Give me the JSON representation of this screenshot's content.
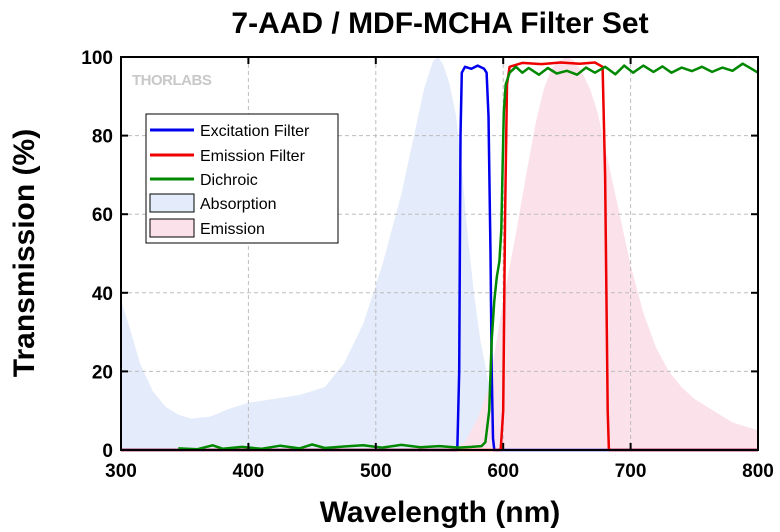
{
  "chart_data": {
    "type": "line",
    "title": "7-AAD / MDF-MCHA Filter Set",
    "xlabel": "Wavelength (nm)",
    "ylabel": "Transmission (%)",
    "xlim": [
      300,
      800
    ],
    "ylim": [
      0,
      100
    ],
    "xticks": [
      300,
      400,
      500,
      600,
      700,
      800
    ],
    "yticks": [
      0,
      20,
      40,
      60,
      80,
      100
    ],
    "grid": true,
    "legend_position": "top-left",
    "logo": "THORLABS",
    "colors": {
      "excitation": "#0000ee",
      "emission_filter": "#ee0000",
      "dichroic": "#008800",
      "absorption_fill": "#e4ebfa",
      "emission_fill": "#fbe1ea",
      "grid": "#bdbdbd"
    },
    "series": [
      {
        "name": "Excitation Filter",
        "kind": "line",
        "color": "#0000ee",
        "points": [
          [
            300,
            0
          ],
          [
            564,
            0
          ],
          [
            565.5,
            20
          ],
          [
            566.5,
            80
          ],
          [
            567.5,
            96
          ],
          [
            570,
            97.5
          ],
          [
            575,
            97
          ],
          [
            580,
            97.8
          ],
          [
            585,
            97
          ],
          [
            587,
            96
          ],
          [
            588.5,
            85
          ],
          [
            590,
            50
          ],
          [
            591,
            20
          ],
          [
            592,
            3
          ],
          [
            593,
            0
          ],
          [
            800,
            0
          ]
        ]
      },
      {
        "name": "Emission Filter",
        "kind": "line",
        "color": "#ee0000",
        "points": [
          [
            300,
            0
          ],
          [
            598,
            0
          ],
          [
            600,
            10
          ],
          [
            601.5,
            60
          ],
          [
            603,
            93
          ],
          [
            605,
            97.5
          ],
          [
            615,
            98.5
          ],
          [
            630,
            98.2
          ],
          [
            645,
            98.6
          ],
          [
            660,
            98.3
          ],
          [
            672,
            98.6
          ],
          [
            678,
            97.5
          ],
          [
            680,
            70
          ],
          [
            681,
            40
          ],
          [
            682,
            10
          ],
          [
            683,
            0
          ],
          [
            800,
            0
          ]
        ]
      },
      {
        "name": "Dichroic",
        "kind": "line",
        "color": "#008800",
        "points": [
          [
            345,
            0.4
          ],
          [
            360,
            0.2
          ],
          [
            372,
            1.2
          ],
          [
            380,
            0.3
          ],
          [
            395,
            0.8
          ],
          [
            410,
            0.3
          ],
          [
            425,
            1.1
          ],
          [
            440,
            0.4
          ],
          [
            450,
            1.4
          ],
          [
            460,
            0.5
          ],
          [
            475,
            0.9
          ],
          [
            490,
            1.2
          ],
          [
            505,
            0.6
          ],
          [
            520,
            1.3
          ],
          [
            535,
            0.7
          ],
          [
            550,
            1.0
          ],
          [
            565,
            0.6
          ],
          [
            575,
            0.8
          ],
          [
            583,
            1.0
          ],
          [
            586,
            2
          ],
          [
            589,
            10
          ],
          [
            591,
            28
          ],
          [
            593,
            38
          ],
          [
            595,
            44
          ],
          [
            597,
            48
          ],
          [
            598.5,
            56
          ],
          [
            599.5,
            72
          ],
          [
            600.5,
            86
          ],
          [
            602,
            93
          ],
          [
            605,
            96
          ],
          [
            610,
            97.5
          ],
          [
            615,
            96
          ],
          [
            620,
            97.2
          ],
          [
            628,
            95.5
          ],
          [
            635,
            97.2
          ],
          [
            642,
            95.8
          ],
          [
            650,
            96.5
          ],
          [
            658,
            95.5
          ],
          [
            665,
            97.3
          ],
          [
            672,
            96
          ],
          [
            680,
            97.5
          ],
          [
            688,
            95.6
          ],
          [
            695,
            97.8
          ],
          [
            702,
            96
          ],
          [
            710,
            97.8
          ],
          [
            718,
            96.2
          ],
          [
            725,
            97.6
          ],
          [
            732,
            96
          ],
          [
            740,
            97.3
          ],
          [
            748,
            96.4
          ],
          [
            756,
            97.5
          ],
          [
            764,
            96.2
          ],
          [
            772,
            97.3
          ],
          [
            780,
            96.5
          ],
          [
            788,
            98.3
          ],
          [
            795,
            97
          ],
          [
            800,
            96
          ]
        ]
      },
      {
        "name": "Absorption",
        "kind": "area",
        "color": "#e4ebfa",
        "points": [
          [
            300,
            38
          ],
          [
            305,
            33
          ],
          [
            315,
            22
          ],
          [
            325,
            15
          ],
          [
            335,
            11
          ],
          [
            345,
            9
          ],
          [
            355,
            8
          ],
          [
            370,
            8.5
          ],
          [
            385,
            10.5
          ],
          [
            400,
            12
          ],
          [
            420,
            13
          ],
          [
            440,
            14
          ],
          [
            460,
            16
          ],
          [
            475,
            22
          ],
          [
            490,
            32
          ],
          [
            505,
            47
          ],
          [
            520,
            65
          ],
          [
            530,
            80
          ],
          [
            538,
            92
          ],
          [
            545,
            99
          ],
          [
            549,
            100
          ],
          [
            553,
            98
          ],
          [
            558,
            93
          ],
          [
            563,
            85
          ],
          [
            568,
            70
          ],
          [
            572,
            55
          ],
          [
            577,
            40
          ],
          [
            582,
            28
          ],
          [
            588,
            18
          ],
          [
            595,
            10
          ],
          [
            600,
            6
          ],
          [
            610,
            2
          ],
          [
            630,
            0.5
          ],
          [
            800,
            0
          ]
        ]
      },
      {
        "name": "Emission",
        "kind": "area",
        "color": "#fbe1ea",
        "points": [
          [
            300,
            0
          ],
          [
            560,
            0
          ],
          [
            570,
            2
          ],
          [
            580,
            8
          ],
          [
            588,
            15
          ],
          [
            595,
            28
          ],
          [
            600,
            38
          ],
          [
            610,
            55
          ],
          [
            618,
            70
          ],
          [
            626,
            84
          ],
          [
            632,
            92
          ],
          [
            638,
            97
          ],
          [
            644,
            99
          ],
          [
            650,
            100
          ],
          [
            656,
            99
          ],
          [
            662,
            96
          ],
          [
            668,
            92
          ],
          [
            674,
            86
          ],
          [
            682,
            74
          ],
          [
            690,
            62
          ],
          [
            700,
            47
          ],
          [
            710,
            35
          ],
          [
            720,
            26
          ],
          [
            730,
            20
          ],
          [
            740,
            16
          ],
          [
            750,
            13
          ],
          [
            760,
            11
          ],
          [
            770,
            9
          ],
          [
            780,
            7
          ],
          [
            790,
            6
          ],
          [
            800,
            5
          ]
        ]
      }
    ]
  }
}
